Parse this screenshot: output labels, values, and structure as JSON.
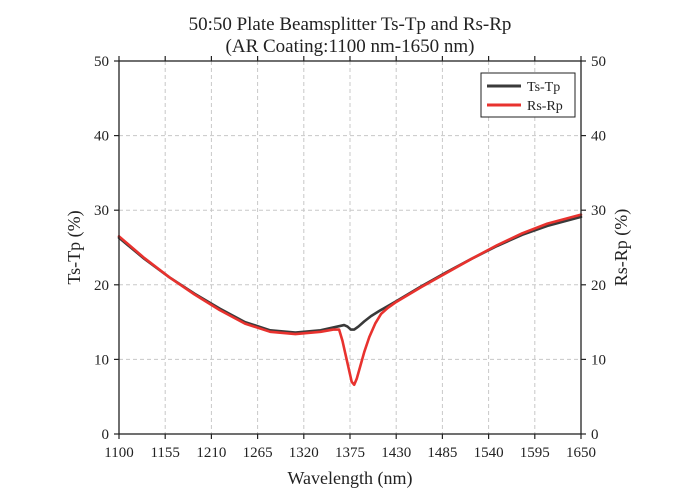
{
  "chart_data": {
    "type": "line",
    "title": "50:50 Plate Beamsplitter Ts-Tp and Rs-Rp",
    "subtitle": "(AR Coating:1100 nm-1650 nm)",
    "xlabel": "Wavelength (nm)",
    "ylabel": "Ts-Tp (%)",
    "ylabel_right": "Rs-Rp (%)",
    "xlim": [
      1100,
      1650
    ],
    "ylim": [
      0,
      50
    ],
    "xticks": [
      1100,
      1155,
      1210,
      1265,
      1320,
      1375,
      1430,
      1485,
      1540,
      1595,
      1650
    ],
    "yticks": [
      0,
      10,
      20,
      30,
      40,
      50
    ],
    "grid": true,
    "legend_position": "top-right",
    "series": [
      {
        "name": "Ts-Tp",
        "color": "#3a3a3a",
        "x": [
          1100,
          1130,
          1160,
          1190,
          1220,
          1250,
          1280,
          1310,
          1340,
          1360,
          1368,
          1372,
          1376,
          1380,
          1385,
          1392,
          1400,
          1410,
          1430,
          1460,
          1490,
          1520,
          1550,
          1580,
          1610,
          1650
        ],
        "y": [
          26.3,
          23.5,
          21.0,
          18.8,
          16.8,
          15.0,
          13.9,
          13.6,
          13.9,
          14.4,
          14.6,
          14.4,
          14.0,
          14.0,
          14.4,
          15.1,
          15.8,
          16.5,
          17.8,
          19.8,
          21.7,
          23.5,
          25.2,
          26.7,
          27.9,
          29.1
        ]
      },
      {
        "name": "Rs-Rp",
        "color": "#e8322e",
        "x": [
          1100,
          1130,
          1160,
          1190,
          1220,
          1250,
          1280,
          1310,
          1340,
          1355,
          1362,
          1366,
          1370,
          1374,
          1377,
          1380,
          1383,
          1387,
          1392,
          1398,
          1405,
          1412,
          1420,
          1430,
          1460,
          1490,
          1520,
          1550,
          1580,
          1610,
          1650
        ],
        "y": [
          26.5,
          23.6,
          21.0,
          18.7,
          16.6,
          14.8,
          13.7,
          13.4,
          13.7,
          14.0,
          14.0,
          12.5,
          10.5,
          8.5,
          7.0,
          6.6,
          7.4,
          9.0,
          11.0,
          13.0,
          14.8,
          16.1,
          16.9,
          17.7,
          19.7,
          21.6,
          23.5,
          25.3,
          26.9,
          28.2,
          29.4
        ]
      }
    ]
  }
}
